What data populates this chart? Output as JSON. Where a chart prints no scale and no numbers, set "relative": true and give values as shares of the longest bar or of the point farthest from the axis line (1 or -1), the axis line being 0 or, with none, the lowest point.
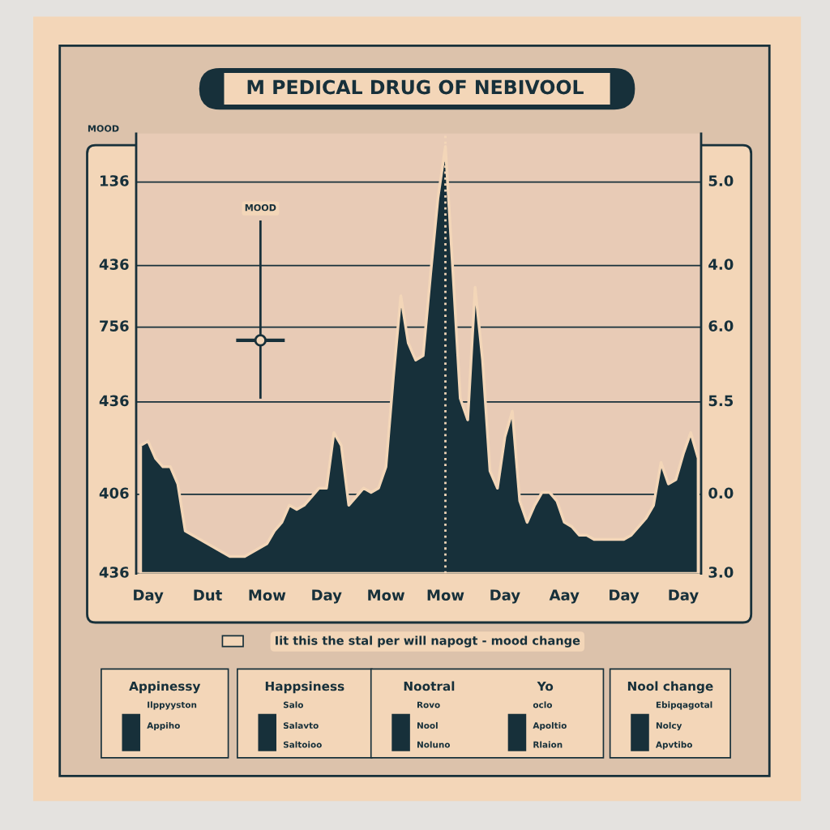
{
  "chart_data": {
    "type": "area",
    "title": "M PEDICAL DRUG OF NEBIVOOL",
    "ylabel": "MOOD",
    "relative": true,
    "categories": [
      null,
      "Day",
      null,
      null,
      null,
      null,
      null,
      null,
      null,
      "Dut",
      null,
      null,
      null,
      null,
      null,
      null,
      null,
      "Mow",
      null,
      null,
      null,
      null,
      null,
      null,
      null,
      "Day",
      null,
      null,
      null,
      null,
      null,
      null,
      null,
      "Mow",
      null,
      null,
      null,
      null,
      null,
      null,
      null,
      "Mow",
      null,
      null,
      null,
      null,
      null,
      null,
      null,
      "Day",
      null,
      null,
      null,
      null,
      null,
      null,
      null,
      "Aay",
      null,
      null,
      null,
      null,
      null,
      null,
      null,
      "Day",
      null,
      null,
      null,
      null,
      null,
      null,
      null,
      "Day",
      null,
      null
    ],
    "series": [
      {
        "color": "#17303a",
        "values": [
          0.3,
          0.31,
          0.27,
          0.25,
          0.25,
          0.21,
          0.1,
          0.09,
          0.08,
          0.07,
          0.06,
          0.05,
          0.04,
          0.04,
          0.04,
          0.05,
          0.06,
          0.07,
          0.1,
          0.12,
          0.16,
          0.15,
          0.16,
          0.18,
          0.2,
          0.2,
          0.33,
          0.3,
          0.16,
          0.18,
          0.2,
          0.19,
          0.2,
          0.25,
          0.46,
          0.65,
          0.54,
          0.5,
          0.51,
          0.7,
          0.88,
          1.0,
          0.71,
          0.41,
          0.36,
          0.67,
          0.5,
          0.24,
          0.2,
          0.32,
          0.38,
          0.17,
          0.12,
          0.16,
          0.19,
          0.19,
          0.17,
          0.12,
          0.11,
          0.09,
          0.09,
          0.08,
          0.08,
          0.08,
          0.08,
          0.08,
          0.09,
          0.11,
          0.13,
          0.16,
          0.26,
          0.21,
          0.22,
          0.28,
          0.33,
          0.27
        ]
      }
    ],
    "grid": "y",
    "legend": false,
    "annotations": [
      "MOOD",
      "Iit this the stal per will napogt - mood change",
      "Appinessy",
      "Ilppyyston",
      "Appiho",
      "Happsiness",
      "Salo",
      "Salavto",
      "Saltoioo",
      "Nootral",
      "Rovo",
      "Nool",
      "Noluno",
      "Yo",
      "oclo",
      "Apoltio",
      "Rlaion",
      "Nool change",
      "Ebipqagotal",
      "Nolcy",
      "Apvtibo",
      "436",
      "406",
      "436",
      "756",
      "436",
      "136",
      "3.0",
      "0.0",
      "5.5",
      "6.0",
      "4.0",
      "5.0"
    ]
  }
}
